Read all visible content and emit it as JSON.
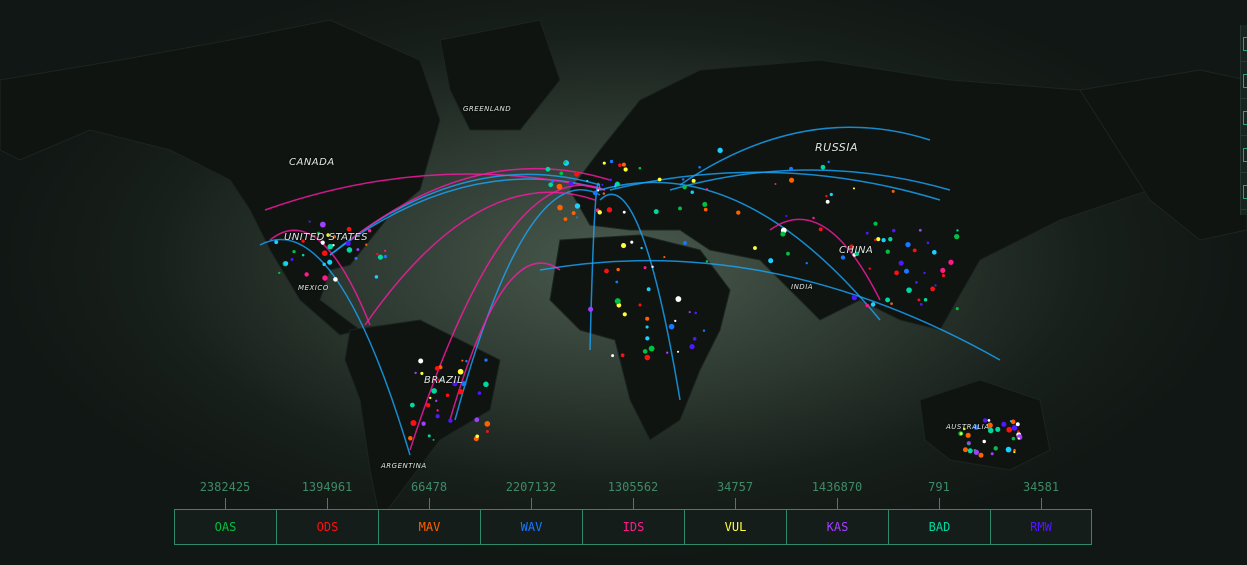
{
  "map": {
    "labels": {
      "greenland": "GREENLAND",
      "canada": "CANADA",
      "russia": "RUSSIA",
      "united_states": "UNITED STATES",
      "mexico": "MEXICO",
      "china": "CHINA",
      "india": "INDIA",
      "brazil": "BRAZIL",
      "australia": "AUSTRALIA",
      "argentina": "ARGENTINA"
    }
  },
  "legend": [
    {
      "label": "OAS",
      "count": "2382425",
      "color": "#00c040"
    },
    {
      "label": "ODS",
      "count": "1394961",
      "color": "#ff1010"
    },
    {
      "label": "MAV",
      "count": "66478",
      "color": "#ff6000"
    },
    {
      "label": "WAV",
      "count": "2207132",
      "color": "#1a78ff"
    },
    {
      "label": "IDS",
      "count": "1305562",
      "color": "#ff1a8c"
    },
    {
      "label": "VUL",
      "count": "34757",
      "color": "#ffff40"
    },
    {
      "label": "KAS",
      "count": "1436870",
      "color": "#a040ff"
    },
    {
      "label": "BAD",
      "count": "791",
      "color": "#00d8a0"
    },
    {
      "label": "RMW",
      "count": "34581",
      "color": "#5018ff"
    }
  ]
}
